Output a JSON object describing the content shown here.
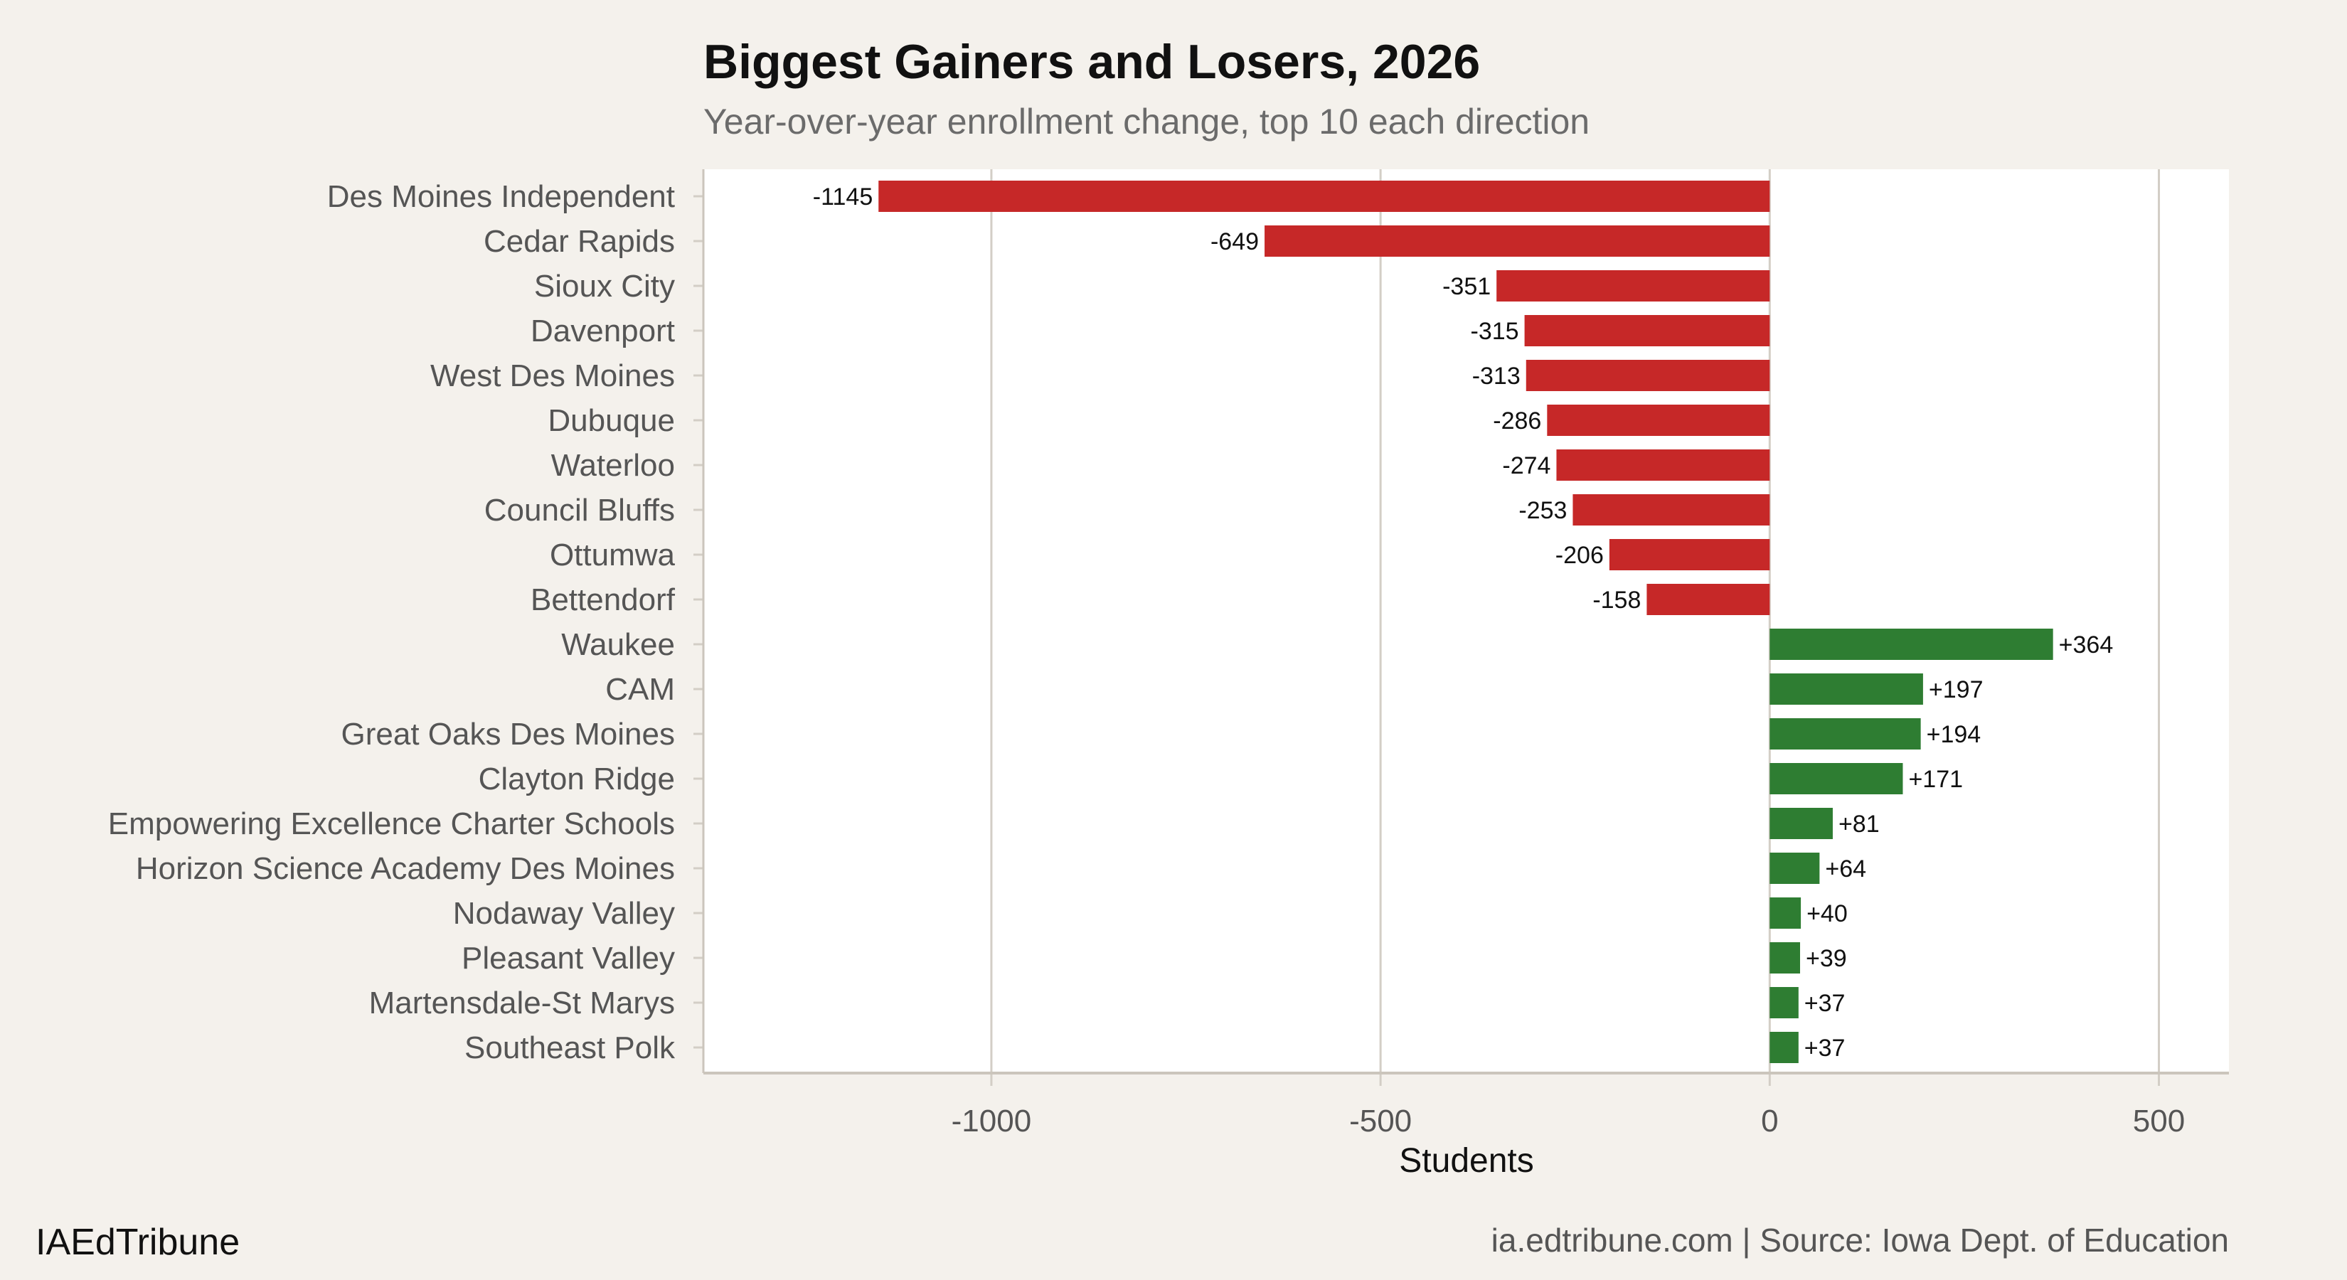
{
  "chart_data": {
    "type": "bar",
    "orientation": "horizontal",
    "title": "Biggest Gainers and Losers, 2026",
    "subtitle": "Year-over-year enrollment change, top 10 each direction",
    "xlabel": "Students",
    "ylabel": "",
    "xlim": [
      -1370,
      590
    ],
    "xticks": [
      -1000,
      -500,
      0,
      500
    ],
    "xtick_labels": [
      "-1000",
      "-500",
      "0",
      "500"
    ],
    "grid": "vertical",
    "categories": [
      "Des Moines Independent",
      "Cedar Rapids",
      "Sioux City",
      "Davenport",
      "West Des Moines",
      "Dubuque",
      "Waterloo",
      "Council Bluffs",
      "Ottumwa",
      "Bettendorf",
      "Waukee",
      "CAM",
      "Great Oaks Des Moines",
      "Clayton Ridge",
      "Empowering Excellence Charter Schools",
      "Horizon Science Academy Des Moines",
      "Nodaway Valley",
      "Pleasant Valley",
      "Martensdale-St Marys",
      "Southeast Polk"
    ],
    "values": [
      -1145,
      -649,
      -351,
      -315,
      -313,
      -286,
      -274,
      -253,
      -206,
      -158,
      364,
      197,
      194,
      171,
      81,
      64,
      40,
      39,
      37,
      37
    ],
    "data_labels": [
      "-1145",
      "-649",
      "-351",
      "-315",
      "-313",
      "-286",
      "-274",
      "-253",
      "-206",
      "-158",
      "+364",
      "+197",
      "+194",
      "+171",
      "+81",
      "+64",
      "+40",
      "+39",
      "+37",
      "+37"
    ],
    "colors": {
      "negative": "#c62828",
      "positive": "#2e7d32",
      "panel": "#ffffff",
      "background": "#f4f1ec",
      "grid": "#d3cec6"
    }
  },
  "footer": {
    "brand": "IAEdTribune",
    "source": "ia.edtribune.com | Source: Iowa Dept. of Education"
  }
}
